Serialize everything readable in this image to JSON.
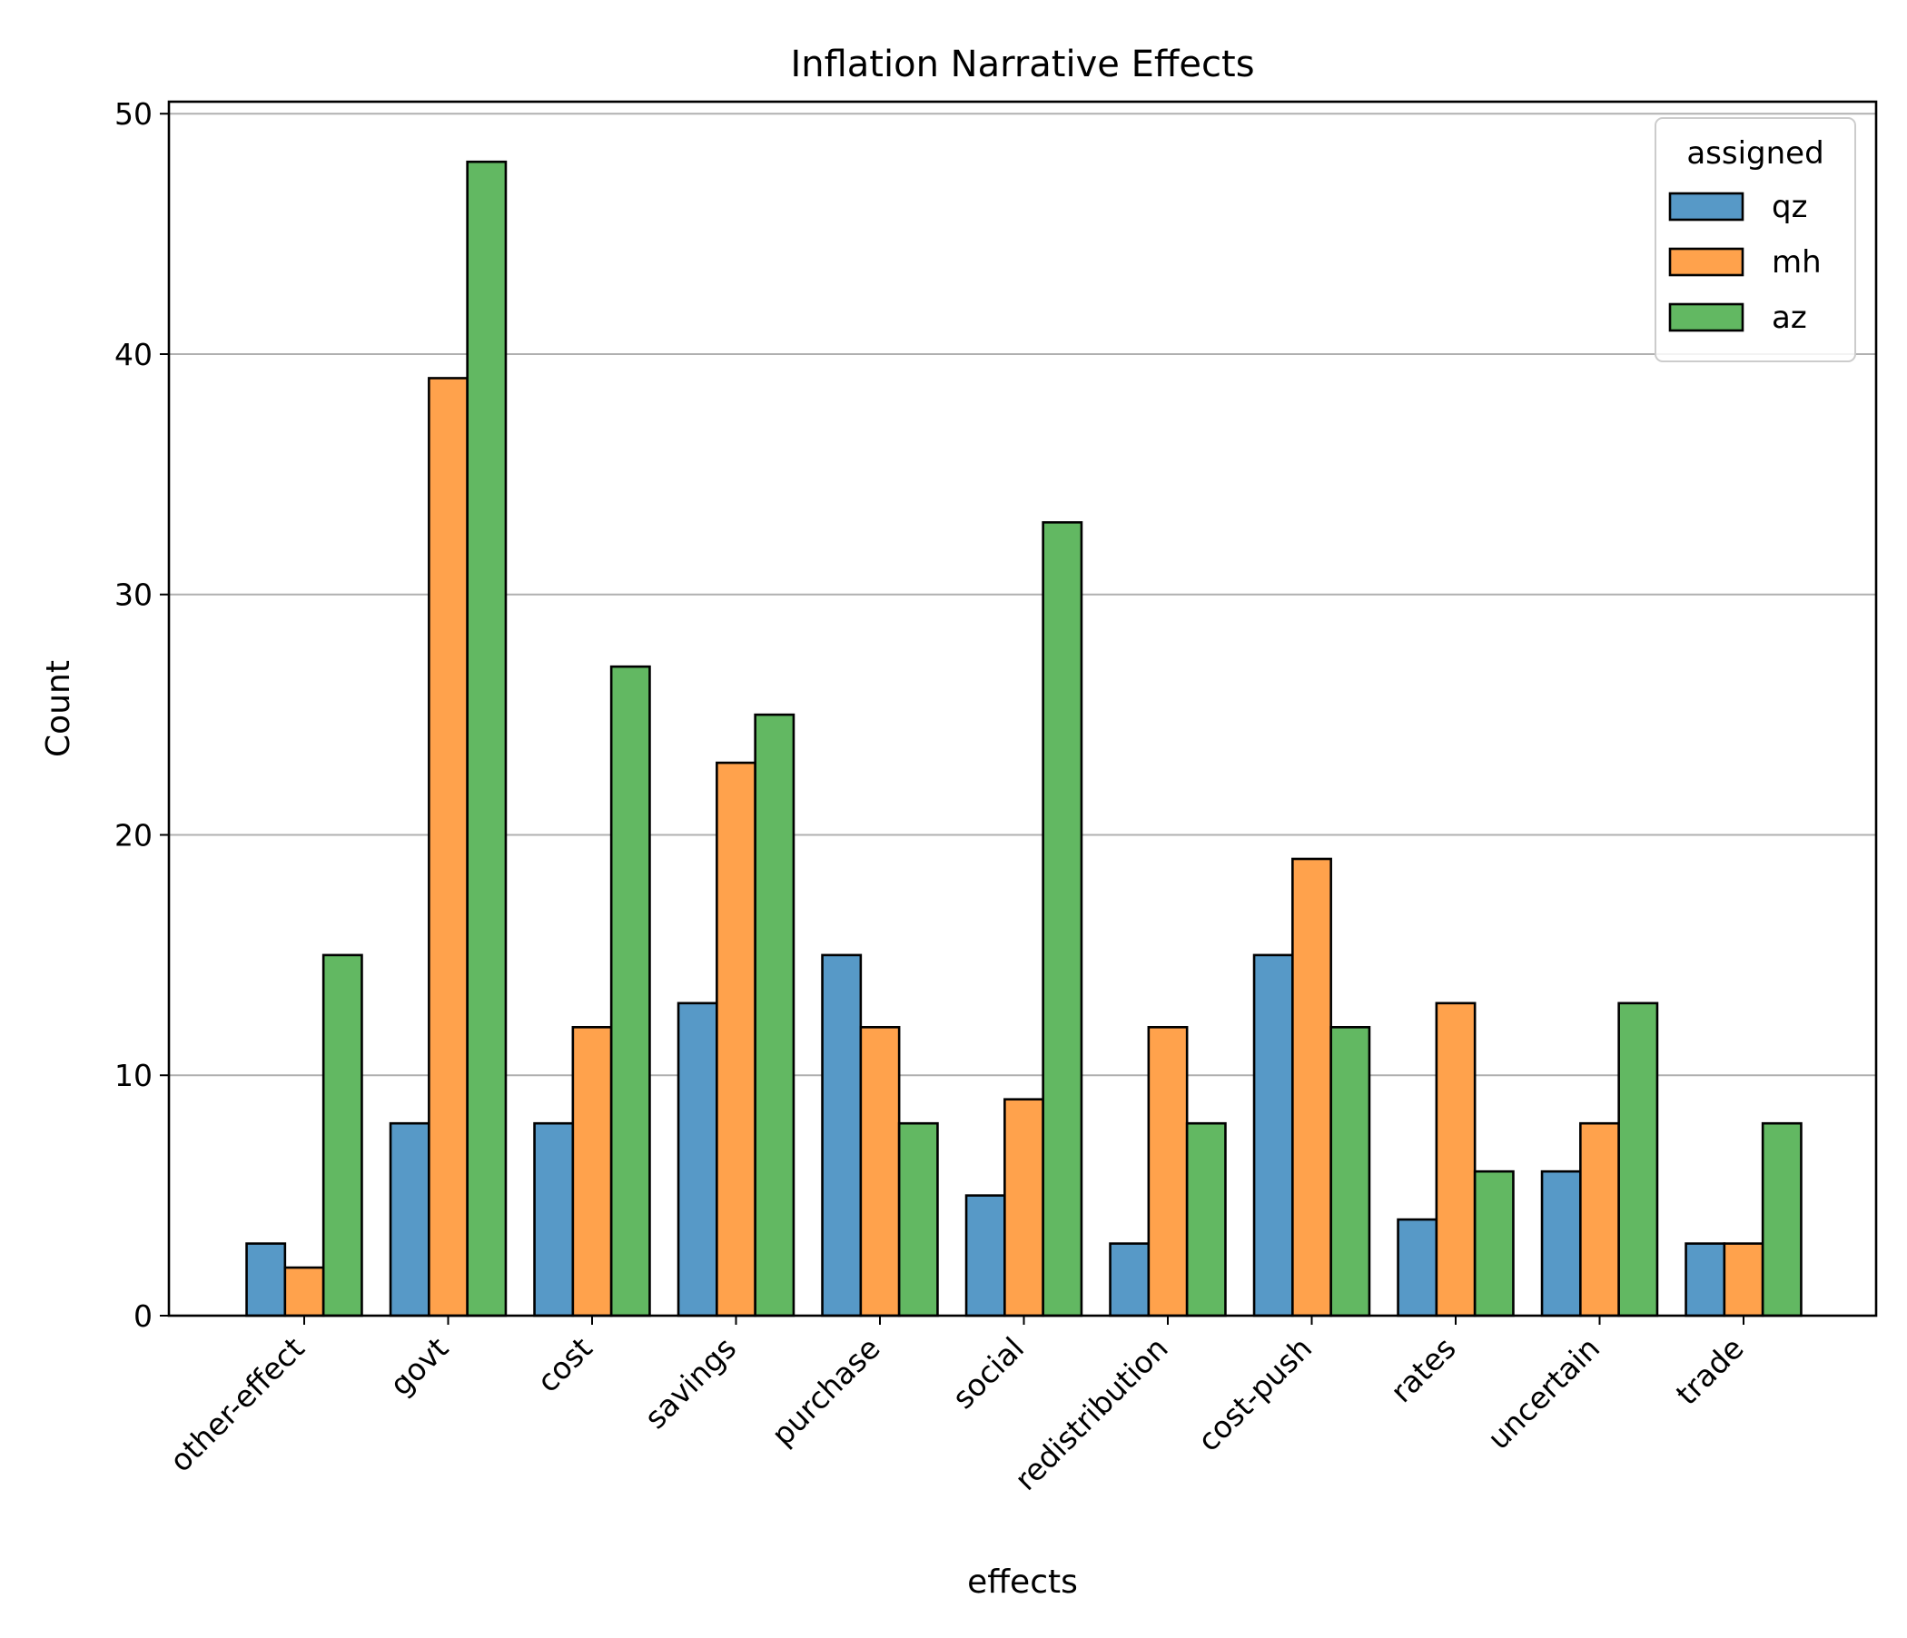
{
  "chart_data": {
    "type": "bar",
    "title": "Inflation Narrative Effects",
    "xlabel": "effects",
    "ylabel": "Count",
    "ylim": [
      0,
      50
    ],
    "yticks": [
      0,
      10,
      20,
      30,
      40,
      50
    ],
    "grid": "horizontal",
    "legend_position": "top-right",
    "legend_title": "assigned",
    "categories": [
      "other-effect",
      "govt",
      "cost",
      "savings",
      "purchase",
      "social",
      "redistribution",
      "cost-push",
      "rates",
      "uncertain",
      "trade"
    ],
    "series": [
      {
        "name": "qz",
        "color": "#5799c7",
        "values": [
          3,
          8,
          8,
          13,
          15,
          5,
          3,
          15,
          4,
          6,
          3
        ]
      },
      {
        "name": "mh",
        "color": "#ffa24c",
        "values": [
          2,
          39,
          12,
          23,
          12,
          9,
          12,
          19,
          13,
          8,
          3
        ]
      },
      {
        "name": "az",
        "color": "#62b862",
        "values": [
          15,
          48,
          27,
          25,
          8,
          33,
          8,
          12,
          6,
          13,
          8
        ]
      }
    ]
  }
}
